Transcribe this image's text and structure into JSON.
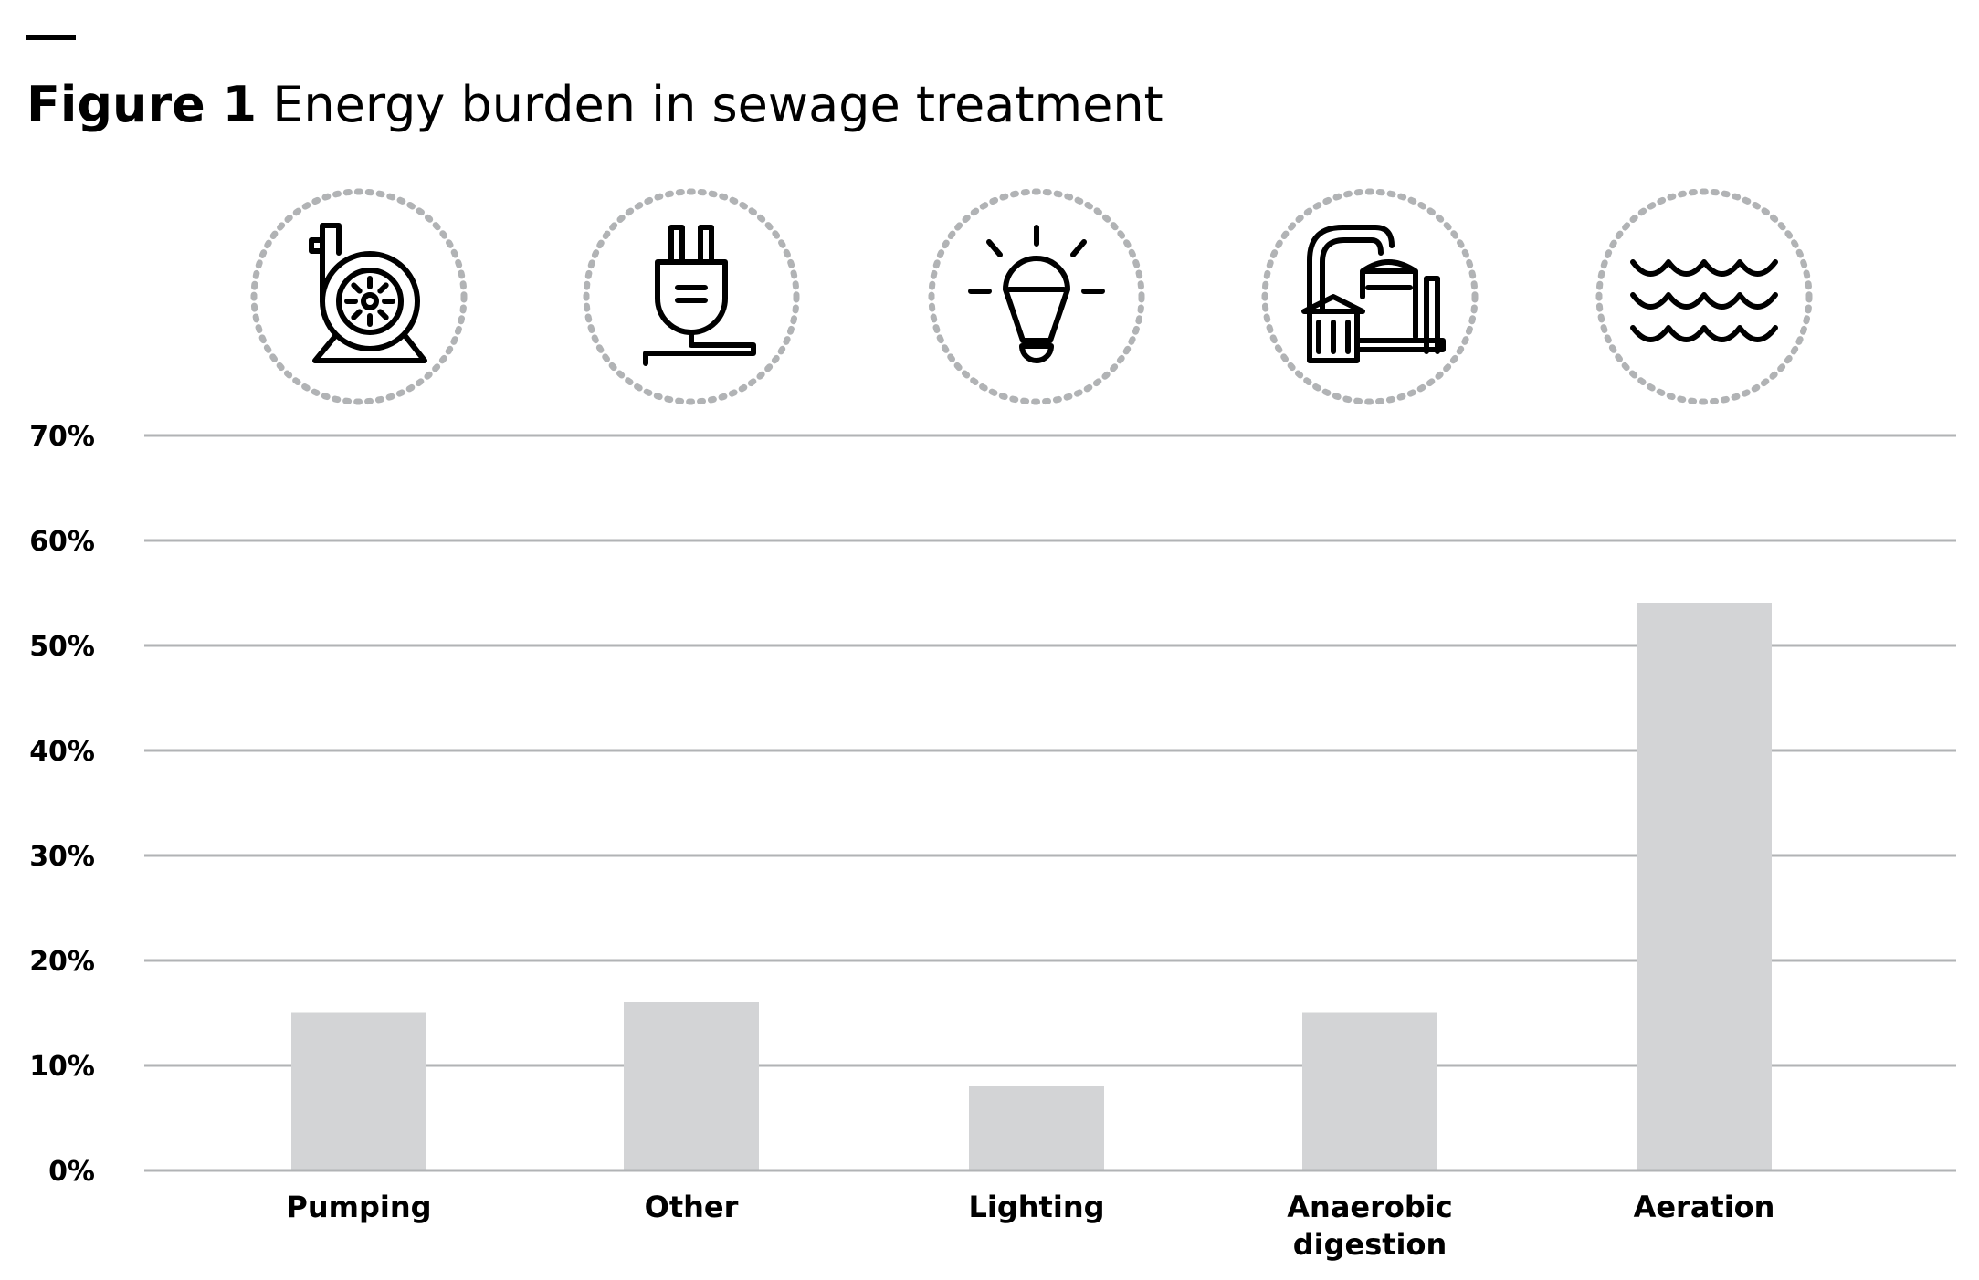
{
  "figure": {
    "label": "Figure 1",
    "title": "Energy burden in sewage treatment"
  },
  "chart_data": {
    "type": "bar",
    "categories": [
      [
        "Pumping"
      ],
      [
        "Other"
      ],
      [
        "Lighting"
      ],
      [
        "Anaerobic",
        "digestion"
      ],
      [
        "Aeration"
      ]
    ],
    "values": [
      15,
      16,
      8,
      15,
      54
    ],
    "unit": "%",
    "ylim": [
      0,
      70
    ],
    "yticks": [
      "0%",
      "10%",
      "20%",
      "30%",
      "40%",
      "50%",
      "60%",
      "70%"
    ],
    "grid": true,
    "legend": "none",
    "icons": [
      "pump-icon",
      "plug-icon",
      "light-bulb-icon",
      "digester-plant-icon",
      "water-waves-icon"
    ],
    "colors": {
      "bar": "#d3d4d6",
      "grid": "#b1b3b5",
      "icon": "#000000",
      "icon_ring": "#b1b3b5"
    }
  }
}
